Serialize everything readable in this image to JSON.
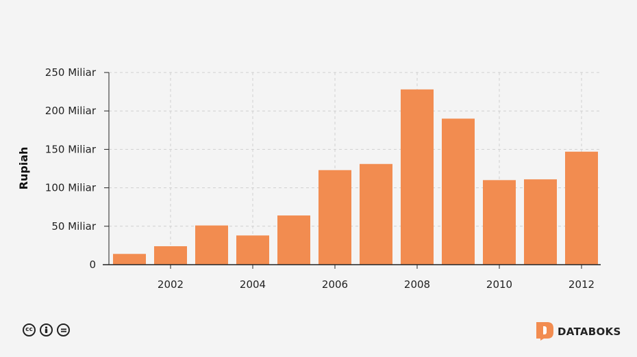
{
  "chart_data": {
    "type": "bar",
    "categories": [
      "2001",
      "2002",
      "2003",
      "2004",
      "2005",
      "2006",
      "2007",
      "2008",
      "2009",
      "2010",
      "2011",
      "2012"
    ],
    "values": [
      14,
      24,
      51,
      38,
      64,
      123,
      131,
      228,
      190,
      110,
      111,
      147
    ],
    "ylabel": "Rupiah",
    "ylim": [
      0,
      250
    ],
    "y_ticks": [
      {
        "value": 0,
        "label": "0"
      },
      {
        "value": 50,
        "label": "50 Miliar"
      },
      {
        "value": 100,
        "label": "100 Miliar"
      },
      {
        "value": 150,
        "label": "150 Miliar"
      },
      {
        "value": 200,
        "label": "200 Miliar"
      },
      {
        "value": 250,
        "label": "250 Miliar"
      }
    ],
    "x_ticks": [
      "2002",
      "2004",
      "2006",
      "2008",
      "2010",
      "2012"
    ],
    "bar_color": "#f28c50",
    "grid": true
  },
  "footer": {
    "license_icons": [
      "cc-icon",
      "attribution-icon",
      "no-derivatives-icon"
    ],
    "brand": "DATABOKS",
    "brand_color": "#f28c50"
  }
}
